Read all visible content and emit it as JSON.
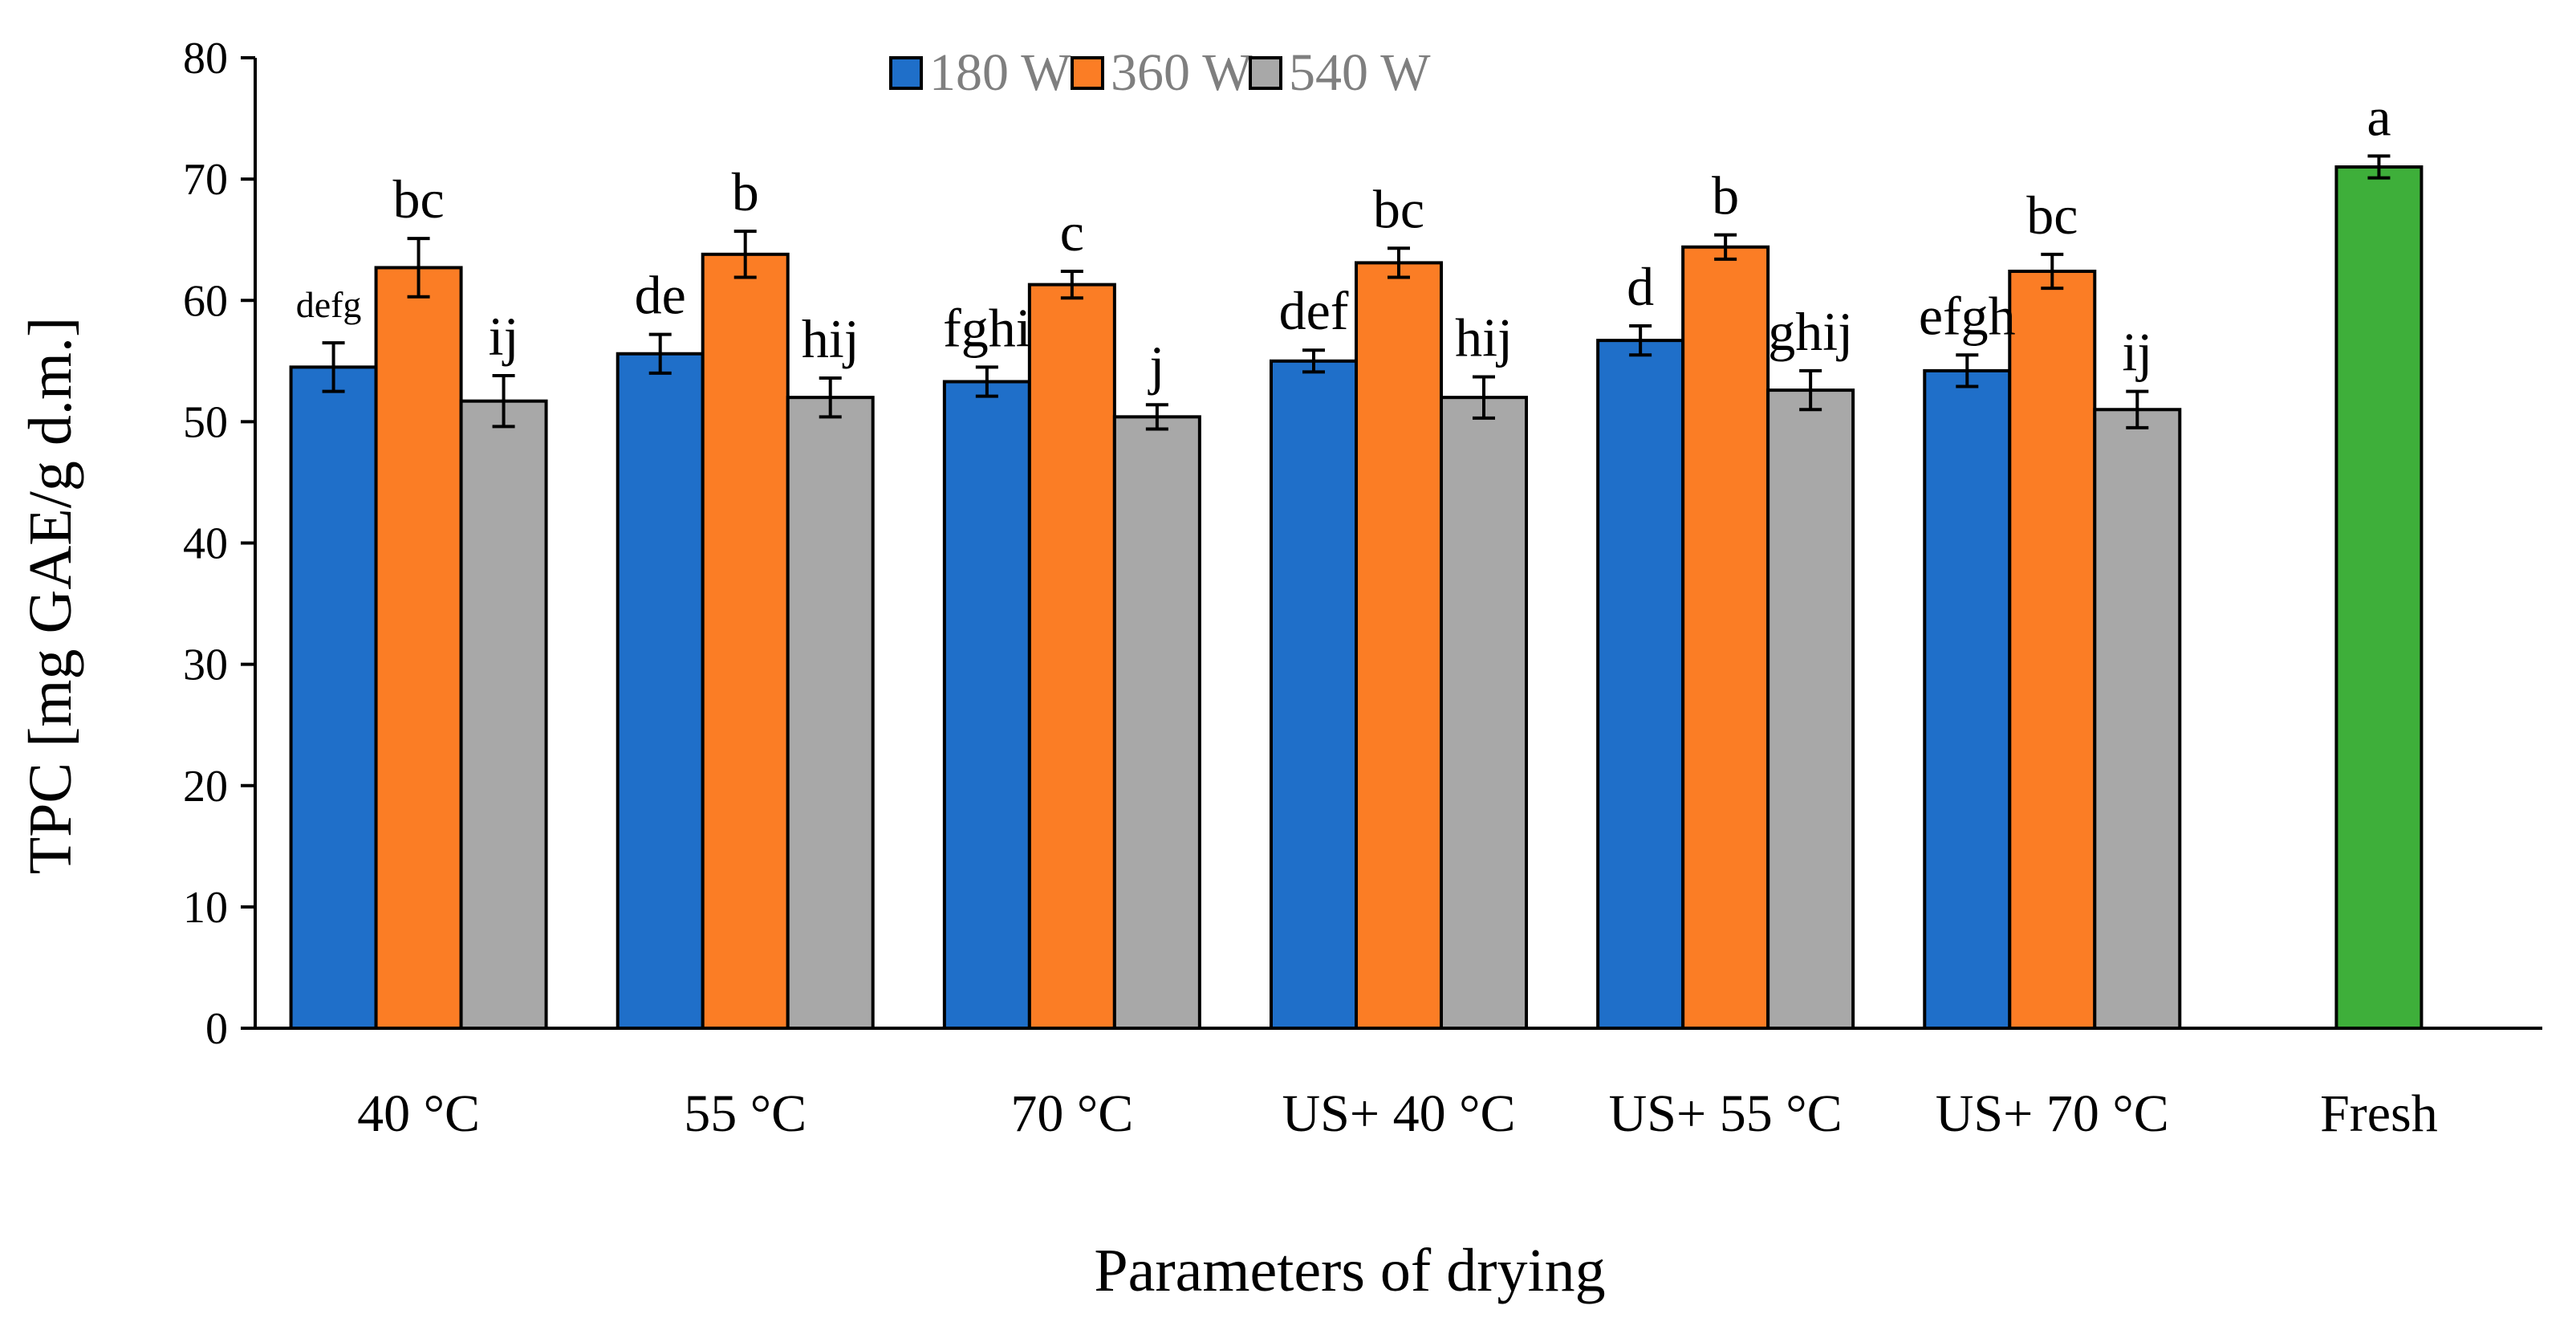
{
  "chart_data": {
    "type": "bar",
    "title": "",
    "xlabel": "Parameters of drying",
    "ylabel": "TPC [mg GAE/g d.m.]",
    "ylim": [
      0,
      80
    ],
    "yticks": [
      0,
      10,
      20,
      30,
      40,
      50,
      60,
      70,
      80
    ],
    "grid": false,
    "legend_position": "top-center",
    "categories": [
      "40 °C",
      "55 °C",
      "70 °C",
      "US+ 40 °C",
      "US+ 55 °C",
      "US+ 70 °C",
      "Fresh"
    ],
    "series": [
      {
        "name": "180 W",
        "color": "#1f6fc9",
        "values": [
          54.5,
          55.6,
          53.3,
          55.0,
          56.7,
          54.2,
          null
        ],
        "errors": [
          2.0,
          1.6,
          1.2,
          0.9,
          1.2,
          1.3,
          null
        ],
        "labels": [
          "defg",
          "de",
          "fghi",
          "def",
          "d",
          "efgh",
          null
        ]
      },
      {
        "name": "360 W",
        "color": "#fb7d25",
        "values": [
          62.7,
          63.8,
          61.3,
          63.1,
          64.4,
          62.4,
          null
        ],
        "errors": [
          2.4,
          1.9,
          1.1,
          1.2,
          1.0,
          1.4,
          null
        ],
        "labels": [
          "bc",
          "b",
          "c",
          "bc",
          "b",
          "bc",
          null
        ]
      },
      {
        "name": "540 W",
        "color": "#a8a8a8",
        "values": [
          51.7,
          52.0,
          50.4,
          52.0,
          52.6,
          51.0,
          null
        ],
        "errors": [
          2.1,
          1.6,
          1.0,
          1.7,
          1.6,
          1.5,
          null
        ],
        "labels": [
          "ij",
          "hij",
          "j",
          "hij",
          "ghij",
          "ij",
          null
        ]
      }
    ],
    "single_bars": [
      {
        "category": "Fresh",
        "value": 71.0,
        "error": 0.9,
        "label": "a",
        "color": "#3eaf3a"
      }
    ]
  }
}
